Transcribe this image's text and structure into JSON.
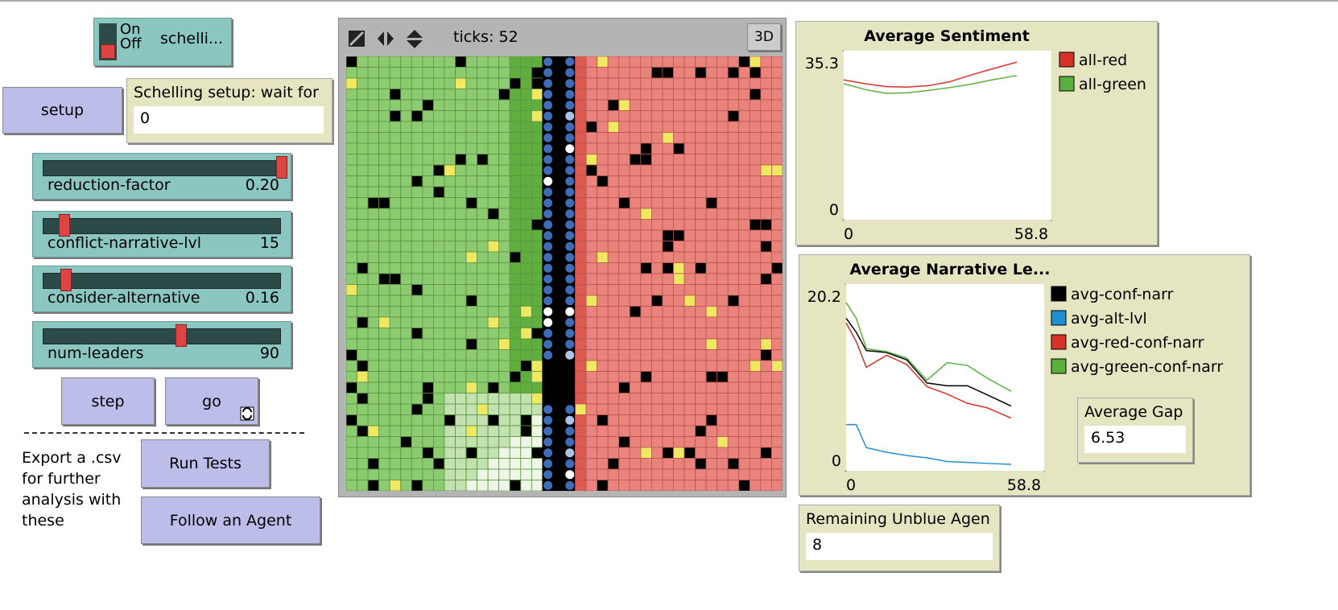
{
  "switch": {
    "on": "On",
    "off": "Off",
    "name": "schelli..."
  },
  "buttons": {
    "setup": "setup",
    "step": "step",
    "go": "go",
    "run_tests": "Run Tests",
    "follow": "Follow an Agent"
  },
  "setup_monitor": {
    "label": "Schelling setup: wait for",
    "value": 0
  },
  "sliders": [
    {
      "name": "reduction-factor",
      "value": "0.20"
    },
    {
      "name": "conflict-narrative-lvl",
      "value": "15"
    },
    {
      "name": "consider-alternative",
      "value": "0.16"
    },
    {
      "name": "num-leaders",
      "value": "90"
    }
  ],
  "note": [
    "Export a .csv",
    "for further",
    "analysis with",
    "these"
  ],
  "view": {
    "ticks_label": "ticks:",
    "ticks": 52,
    "three_d": "3D"
  },
  "plots": [
    {
      "type": "line",
      "title": "Average Sentiment",
      "x": [
        0,
        6,
        12,
        18,
        24,
        30,
        36,
        42,
        49
      ],
      "xlim": [
        0,
        58.8
      ],
      "ylim": [
        0,
        35.3
      ],
      "xticks": [
        0,
        58.8
      ],
      "yticks": [
        0,
        35.3
      ],
      "series": [
        {
          "name": "all-red",
          "color": "#d73229",
          "values": [
            29.2,
            28.4,
            27.8,
            27.7,
            28.0,
            28.8,
            30.2,
            31.5,
            32.9
          ]
        },
        {
          "name": "all-green",
          "color": "#59b03d",
          "values": [
            28.4,
            27.2,
            26.4,
            26.5,
            27.0,
            27.6,
            28.3,
            29.2,
            30.1
          ]
        }
      ]
    },
    {
      "type": "line",
      "title": "Average Narrative Le...",
      "x": [
        0,
        3,
        6,
        12,
        18,
        24,
        30,
        36,
        42,
        49
      ],
      "xlim": [
        0,
        58.8
      ],
      "ylim": [
        0,
        20.2
      ],
      "xticks": [
        0,
        58.8
      ],
      "yticks": [
        0,
        20.2
      ],
      "series": [
        {
          "name": "avg-conf-narr",
          "color": "#000000",
          "values": [
            16.5,
            15.0,
            13.0,
            12.8,
            12.0,
            9.5,
            9.2,
            9.2,
            8.2,
            7.0
          ]
        },
        {
          "name": "avg-alt-lvl",
          "color": "#1f8fd0",
          "values": [
            5.0,
            5.0,
            2.5,
            2.0,
            1.65,
            1.4,
            1.0,
            0.9,
            0.8,
            0.7
          ]
        },
        {
          "name": "avg-red-conf-narr",
          "color": "#d73229",
          "values": [
            16.0,
            14.0,
            11.2,
            12.5,
            11.5,
            9.1,
            8.3,
            7.3,
            6.8,
            5.7
          ]
        },
        {
          "name": "avg-green-conf-narr",
          "color": "#59b03d",
          "values": [
            18.2,
            16.5,
            13.2,
            12.9,
            12.2,
            9.8,
            11.7,
            11.4,
            10.0,
            8.6
          ]
        }
      ]
    }
  ],
  "gap_monitor": {
    "label": "Average Gap",
    "value": 6.53
  },
  "unblue_monitor": {
    "label": "Remaining Unblue Agen",
    "value": 8
  }
}
